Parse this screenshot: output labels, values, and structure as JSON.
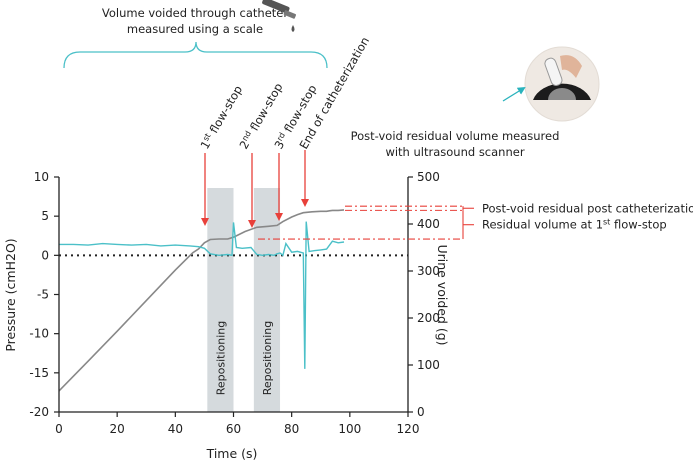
{
  "chart_data": {
    "type": "line",
    "xlabel": "Time (s)",
    "ylabel_left": "Pressure (cmH2O)",
    "ylabel_right": "Urine voided (g)",
    "xlim": [
      0,
      120
    ],
    "ylim_left": [
      -20,
      10
    ],
    "ylim_right": [
      0,
      500
    ],
    "x_ticks": [
      0,
      20,
      40,
      60,
      80,
      100,
      120
    ],
    "y_ticks_left": [
      -20,
      -15,
      -10,
      -5,
      0,
      5,
      10
    ],
    "y_ticks_right": [
      0,
      100,
      200,
      300,
      400,
      500
    ],
    "zero_reference_line": 0,
    "series": [
      {
        "name": "Pressure",
        "axis": "left",
        "color": "#4bc0c8",
        "x": [
          0,
          5,
          10,
          15,
          20,
          25,
          30,
          35,
          40,
          45,
          48,
          50,
          52,
          55,
          58,
          59.5,
          60,
          61,
          63,
          66,
          68,
          70,
          72,
          74,
          75,
          76,
          77,
          78,
          80,
          82,
          84,
          84.5,
          85,
          86,
          88,
          90,
          92,
          94,
          96,
          98
        ],
        "values": [
          1.4,
          1.4,
          1.3,
          1.5,
          1.4,
          1.3,
          1.4,
          1.2,
          1.3,
          1.2,
          1.1,
          0.9,
          0.2,
          0.0,
          0.1,
          0.0,
          4.2,
          1.0,
          0.9,
          1.0,
          0.1,
          0.0,
          0.1,
          0.0,
          0.2,
          0.3,
          0.0,
          1.5,
          0.4,
          0.5,
          0.3,
          -14.5,
          4.3,
          0.5,
          0.6,
          0.7,
          0.8,
          1.8,
          1.6,
          1.7
        ]
      },
      {
        "name": "Urine voided",
        "axis": "right",
        "color": "#888888",
        "x": [
          0,
          10,
          20,
          30,
          40,
          46,
          48,
          50,
          52,
          55,
          58,
          60,
          64,
          68,
          72,
          75,
          77,
          80,
          82,
          84,
          87,
          90,
          92,
          93,
          94,
          96,
          98
        ],
        "values": [
          45,
          108,
          172,
          237,
          302,
          339,
          347,
          360,
          367,
          368,
          368,
          372,
          384,
          393,
          395,
          397,
          405,
          415,
          420,
          424,
          426,
          427,
          427,
          428,
          429,
          429,
          430
        ]
      }
    ],
    "shaded_regions": [
      {
        "x0": 51,
        "x1": 60,
        "label": "Repositioning"
      },
      {
        "x0": 67,
        "x1": 76,
        "label": "Repositioning"
      }
    ],
    "event_markers": [
      {
        "label_main": "1",
        "label_sup": "st",
        "label_rest": " flow-stop",
        "x": 50
      },
      {
        "label_main": "2",
        "label_sup": "nd",
        "label_rest": " flow-stop",
        "x": 67
      },
      {
        "label_main": "3",
        "label_sup": "rd",
        "label_rest": " flow-stop",
        "x": 76
      },
      {
        "label_main": "End of catheterization",
        "label_sup": "",
        "label_rest": "",
        "x": 85
      }
    ],
    "residual_levels": {
      "flow_stop_1_g": 368,
      "end_catheterization_g": 429,
      "top_bracket_g": 438,
      "label_post_catheterization": "Post-void residual post catheterization",
      "label_flow_stop_prefix": "Residual volume at 1",
      "label_flow_stop_sup": "st",
      "label_flow_stop_suffix": " flow-stop"
    },
    "annotations": {
      "top_line1": "Volume voided through catheter",
      "top_line2": "measured using a scale",
      "ultrasound_line1": "Post-void residual volume measured",
      "ultrasound_line2": "with ultrasound scanner"
    }
  },
  "colors": {
    "pressure": "#4bc0c8",
    "urine": "#888888",
    "arrows": "#e8403a",
    "brace": "#4bc0c8",
    "shade": "#d5dadd"
  }
}
